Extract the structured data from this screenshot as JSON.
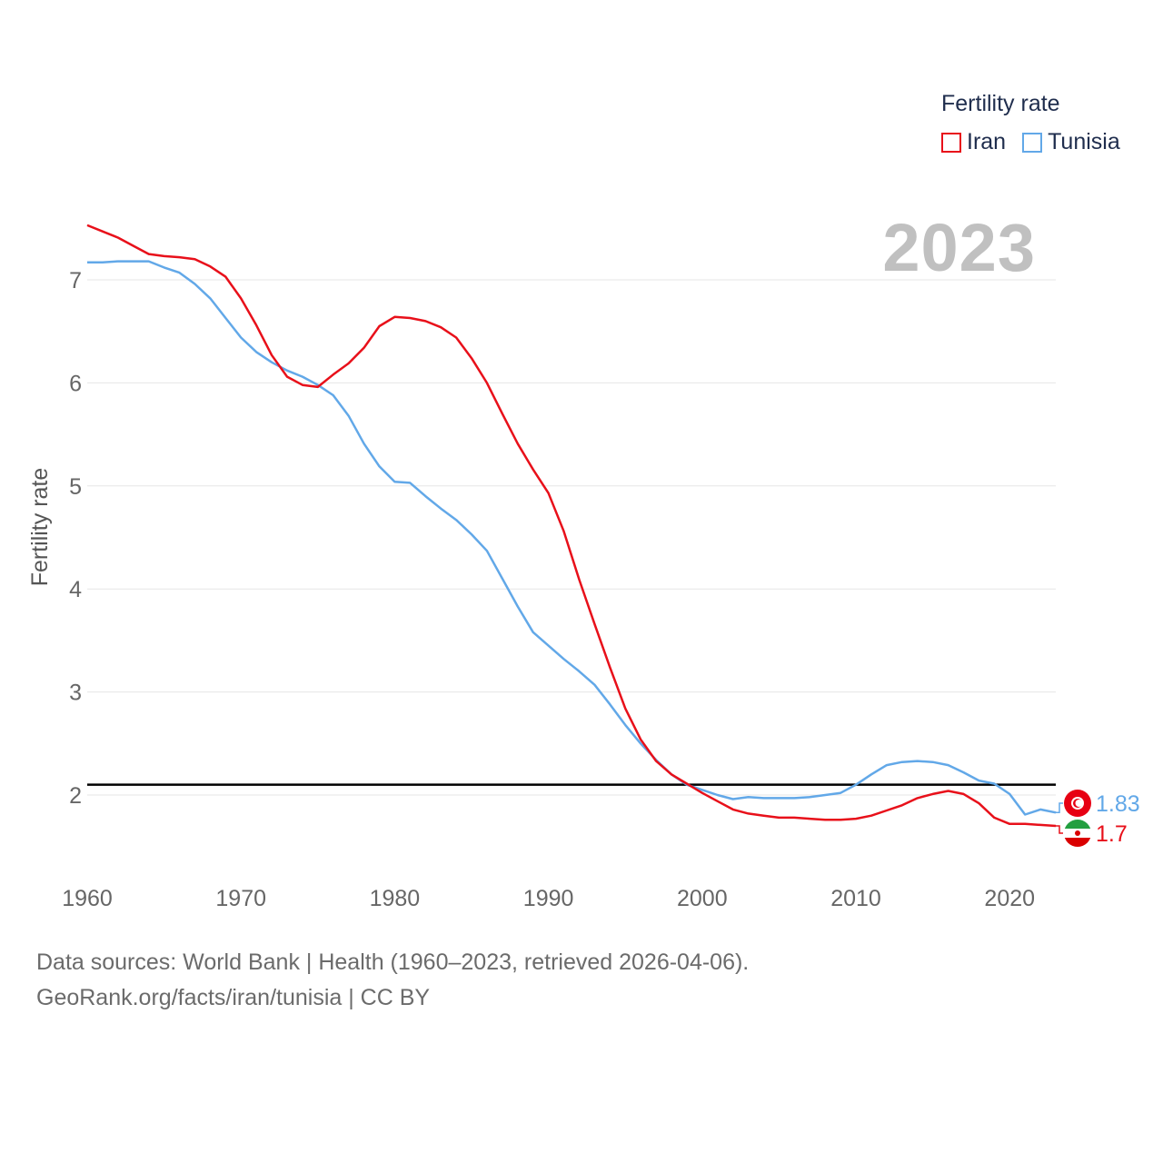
{
  "chart_data": {
    "type": "line",
    "title": "2023",
    "legend_title": "Fertility rate",
    "ylabel": "Fertility rate",
    "xlabel": "",
    "xlim": [
      1960,
      2023
    ],
    "ylim": [
      1.4,
      7.6
    ],
    "yticks": [
      2,
      3,
      4,
      5,
      6,
      7
    ],
    "xticks": [
      1960,
      1970,
      1980,
      1990,
      2000,
      2010,
      2020
    ],
    "reference_line": {
      "y": 2.1,
      "color": "#000000"
    },
    "grid": true,
    "legend_position": "top-right",
    "series": [
      {
        "name": "Iran",
        "color": "#e8101a",
        "end_label": "1.7",
        "flag": "iran-flag-icon",
        "x": [
          1960,
          1961,
          1962,
          1963,
          1964,
          1965,
          1966,
          1967,
          1968,
          1969,
          1970,
          1971,
          1972,
          1973,
          1974,
          1975,
          1976,
          1977,
          1978,
          1979,
          1980,
          1981,
          1982,
          1983,
          1984,
          1985,
          1986,
          1987,
          1988,
          1989,
          1990,
          1991,
          1992,
          1993,
          1994,
          1995,
          1996,
          1997,
          1998,
          1999,
          2000,
          2001,
          2002,
          2003,
          2004,
          2005,
          2006,
          2007,
          2008,
          2009,
          2010,
          2011,
          2012,
          2013,
          2014,
          2015,
          2016,
          2017,
          2018,
          2019,
          2020,
          2021,
          2022,
          2023
        ],
        "values": [
          7.53,
          7.47,
          7.41,
          7.33,
          7.25,
          7.23,
          7.22,
          7.2,
          7.13,
          7.03,
          6.82,
          6.56,
          6.27,
          6.06,
          5.98,
          5.96,
          6.08,
          6.19,
          6.34,
          6.55,
          6.64,
          6.63,
          6.6,
          6.54,
          6.44,
          6.24,
          6.0,
          5.7,
          5.41,
          5.16,
          4.93,
          4.56,
          4.09,
          3.66,
          3.24,
          2.84,
          2.54,
          2.33,
          2.2,
          2.11,
          2.02,
          1.94,
          1.86,
          1.82,
          1.8,
          1.78,
          1.78,
          1.77,
          1.76,
          1.76,
          1.77,
          1.8,
          1.85,
          1.9,
          1.97,
          2.01,
          2.04,
          2.01,
          1.92,
          1.78,
          1.72,
          1.72,
          1.71,
          1.7
        ]
      },
      {
        "name": "Tunisia",
        "color": "#62a8e8",
        "end_label": "1.83",
        "flag": "tunisia-flag-icon",
        "x": [
          1960,
          1961,
          1962,
          1963,
          1964,
          1965,
          1966,
          1967,
          1968,
          1969,
          1970,
          1971,
          1972,
          1973,
          1974,
          1975,
          1976,
          1977,
          1978,
          1979,
          1980,
          1981,
          1982,
          1983,
          1984,
          1985,
          1986,
          1987,
          1988,
          1989,
          1990,
          1991,
          1992,
          1993,
          1994,
          1995,
          1996,
          1997,
          1998,
          1999,
          2000,
          2001,
          2002,
          2003,
          2004,
          2005,
          2006,
          2007,
          2008,
          2009,
          2010,
          2011,
          2012,
          2013,
          2014,
          2015,
          2016,
          2017,
          2018,
          2019,
          2020,
          2021,
          2022,
          2023
        ],
        "values": [
          7.17,
          7.17,
          7.18,
          7.18,
          7.18,
          7.12,
          7.07,
          6.96,
          6.82,
          6.63,
          6.44,
          6.3,
          6.2,
          6.12,
          6.06,
          5.98,
          5.88,
          5.68,
          5.41,
          5.19,
          5.04,
          5.03,
          4.9,
          4.78,
          4.67,
          4.53,
          4.37,
          4.1,
          3.83,
          3.58,
          3.45,
          3.32,
          3.2,
          3.07,
          2.88,
          2.68,
          2.5,
          2.34,
          2.2,
          2.1,
          2.05,
          2.0,
          1.96,
          1.98,
          1.97,
          1.97,
          1.97,
          1.98,
          2.0,
          2.02,
          2.1,
          2.2,
          2.29,
          2.32,
          2.33,
          2.32,
          2.29,
          2.22,
          2.14,
          2.11,
          2.01,
          1.81,
          1.86,
          1.83
        ]
      }
    ]
  },
  "footer": {
    "line1": "Data sources: World Bank | Health (1960–2023, retrieved 2026-04-06).",
    "line2": "GeoRank.org/facts/iran/tunisia | CC BY"
  }
}
